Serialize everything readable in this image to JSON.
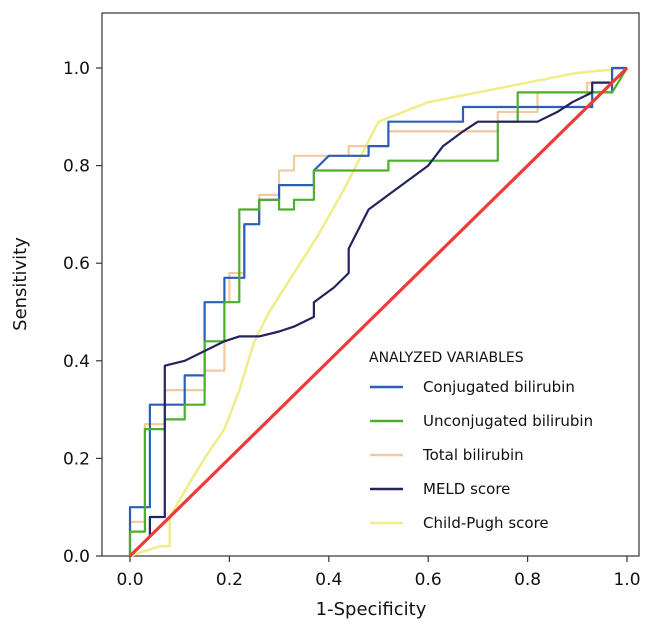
{
  "chart_data": {
    "type": "line",
    "title": "",
    "xlabel": "1-Specificity",
    "ylabel": "Sensitivity",
    "xlim": [
      0,
      1
    ],
    "ylim": [
      0,
      1
    ],
    "x_ticks": [
      "0.0",
      "0.2",
      "0.4",
      "0.6",
      "0.8",
      "1.0"
    ],
    "y_ticks": [
      "0.0",
      "0.2",
      "0.4",
      "0.6",
      "0.8",
      "1.0"
    ],
    "grid": false,
    "legend": {
      "title": "ANALYZED VARIABLES",
      "placement": "bottom-right"
    },
    "reference_line": {
      "x": [
        0,
        1
      ],
      "y": [
        0,
        1
      ],
      "color": "#f03a3a"
    },
    "series": [
      {
        "name": "Child-Pugh score",
        "color": "#f0ee8c",
        "points": [
          [
            0,
            0
          ],
          [
            0.06,
            0.02
          ],
          [
            0.08,
            0.02
          ],
          [
            0.08,
            0.08
          ],
          [
            0.12,
            0.15
          ],
          [
            0.15,
            0.2
          ],
          [
            0.19,
            0.26
          ],
          [
            0.22,
            0.34
          ],
          [
            0.25,
            0.44
          ],
          [
            0.28,
            0.5
          ],
          [
            0.33,
            0.58
          ],
          [
            0.38,
            0.66
          ],
          [
            0.43,
            0.75
          ],
          [
            0.46,
            0.81
          ],
          [
            0.5,
            0.89
          ],
          [
            0.55,
            0.91
          ],
          [
            0.6,
            0.93
          ],
          [
            0.7,
            0.95
          ],
          [
            0.8,
            0.97
          ],
          [
            0.9,
            0.99
          ],
          [
            1,
            1
          ]
        ]
      },
      {
        "name": "Total bilirubin",
        "color": "#f4c9a0",
        "points": [
          [
            0,
            0
          ],
          [
            0,
            0.07
          ],
          [
            0.03,
            0.07
          ],
          [
            0.03,
            0.27
          ],
          [
            0.07,
            0.27
          ],
          [
            0.07,
            0.34
          ],
          [
            0.15,
            0.34
          ],
          [
            0.15,
            0.38
          ],
          [
            0.19,
            0.38
          ],
          [
            0.19,
            0.52
          ],
          [
            0.2,
            0.52
          ],
          [
            0.2,
            0.58
          ],
          [
            0.23,
            0.58
          ],
          [
            0.23,
            0.68
          ],
          [
            0.26,
            0.68
          ],
          [
            0.26,
            0.74
          ],
          [
            0.3,
            0.74
          ],
          [
            0.3,
            0.79
          ],
          [
            0.33,
            0.79
          ],
          [
            0.33,
            0.82
          ],
          [
            0.44,
            0.82
          ],
          [
            0.44,
            0.84
          ],
          [
            0.52,
            0.84
          ],
          [
            0.52,
            0.87
          ],
          [
            0.74,
            0.87
          ],
          [
            0.74,
            0.91
          ],
          [
            0.82,
            0.91
          ],
          [
            0.82,
            0.95
          ],
          [
            0.92,
            0.95
          ],
          [
            0.92,
            0.97
          ],
          [
            0.97,
            0.97
          ],
          [
            0.97,
            1
          ],
          [
            1,
            1
          ]
        ]
      },
      {
        "name": "Conjugated bilirubin",
        "color": "#2b5fb5",
        "points": [
          [
            0,
            0
          ],
          [
            0,
            0.1
          ],
          [
            0.04,
            0.1
          ],
          [
            0.04,
            0.31
          ],
          [
            0.11,
            0.31
          ],
          [
            0.11,
            0.37
          ],
          [
            0.15,
            0.37
          ],
          [
            0.15,
            0.52
          ],
          [
            0.19,
            0.52
          ],
          [
            0.19,
            0.57
          ],
          [
            0.23,
            0.57
          ],
          [
            0.23,
            0.68
          ],
          [
            0.26,
            0.68
          ],
          [
            0.26,
            0.73
          ],
          [
            0.3,
            0.73
          ],
          [
            0.3,
            0.76
          ],
          [
            0.37,
            0.76
          ],
          [
            0.37,
            0.79
          ],
          [
            0.4,
            0.82
          ],
          [
            0.48,
            0.82
          ],
          [
            0.48,
            0.84
          ],
          [
            0.52,
            0.84
          ],
          [
            0.52,
            0.89
          ],
          [
            0.67,
            0.89
          ],
          [
            0.67,
            0.92
          ],
          [
            0.82,
            0.92
          ],
          [
            0.82,
            0.92
          ],
          [
            0.93,
            0.92
          ],
          [
            0.93,
            0.95
          ],
          [
            0.97,
            0.95
          ],
          [
            0.97,
            1
          ],
          [
            1,
            1
          ]
        ]
      },
      {
        "name": "Unconjugated bilirubin",
        "color": "#4caf2a",
        "points": [
          [
            0,
            0
          ],
          [
            0,
            0.05
          ],
          [
            0.03,
            0.05
          ],
          [
            0.03,
            0.26
          ],
          [
            0.07,
            0.26
          ],
          [
            0.07,
            0.28
          ],
          [
            0.11,
            0.28
          ],
          [
            0.11,
            0.31
          ],
          [
            0.15,
            0.31
          ],
          [
            0.15,
            0.44
          ],
          [
            0.19,
            0.44
          ],
          [
            0.19,
            0.52
          ],
          [
            0.22,
            0.52
          ],
          [
            0.22,
            0.71
          ],
          [
            0.26,
            0.71
          ],
          [
            0.26,
            0.73
          ],
          [
            0.3,
            0.73
          ],
          [
            0.3,
            0.71
          ],
          [
            0.33,
            0.71
          ],
          [
            0.33,
            0.73
          ],
          [
            0.37,
            0.73
          ],
          [
            0.37,
            0.79
          ],
          [
            0.48,
            0.79
          ],
          [
            0.48,
            0.79
          ],
          [
            0.52,
            0.79
          ],
          [
            0.52,
            0.81
          ],
          [
            0.74,
            0.81
          ],
          [
            0.74,
            0.89
          ],
          [
            0.78,
            0.89
          ],
          [
            0.78,
            0.92
          ],
          [
            0.78,
            0.95
          ],
          [
            0.9,
            0.95
          ],
          [
            0.9,
            0.95
          ],
          [
            0.97,
            0.95
          ],
          [
            0.97,
            0.95
          ],
          [
            1,
            1
          ]
        ]
      },
      {
        "name": "MELD score",
        "color": "#23235e",
        "points": [
          [
            0,
            0
          ],
          [
            0.04,
            0.04
          ],
          [
            0.04,
            0.08
          ],
          [
            0.07,
            0.08
          ],
          [
            0.07,
            0.11
          ],
          [
            0.07,
            0.26
          ],
          [
            0.07,
            0.39
          ],
          [
            0.11,
            0.4
          ],
          [
            0.15,
            0.42
          ],
          [
            0.19,
            0.44
          ],
          [
            0.22,
            0.45
          ],
          [
            0.26,
            0.45
          ],
          [
            0.3,
            0.46
          ],
          [
            0.33,
            0.47
          ],
          [
            0.37,
            0.49
          ],
          [
            0.37,
            0.52
          ],
          [
            0.41,
            0.55
          ],
          [
            0.44,
            0.58
          ],
          [
            0.44,
            0.63
          ],
          [
            0.48,
            0.71
          ],
          [
            0.52,
            0.74
          ],
          [
            0.56,
            0.77
          ],
          [
            0.6,
            0.8
          ],
          [
            0.63,
            0.84
          ],
          [
            0.67,
            0.87
          ],
          [
            0.7,
            0.89
          ],
          [
            0.74,
            0.89
          ],
          [
            0.78,
            0.89
          ],
          [
            0.82,
            0.89
          ],
          [
            0.86,
            0.91
          ],
          [
            0.89,
            0.93
          ],
          [
            0.93,
            0.95
          ],
          [
            0.93,
            0.97
          ],
          [
            0.97,
            0.97
          ],
          [
            1,
            1
          ]
        ]
      }
    ],
    "legend_order": [
      "Conjugated bilirubin",
      "Unconjugated bilirubin",
      "Total bilirubin",
      "MELD score",
      "Child-Pugh score"
    ]
  }
}
